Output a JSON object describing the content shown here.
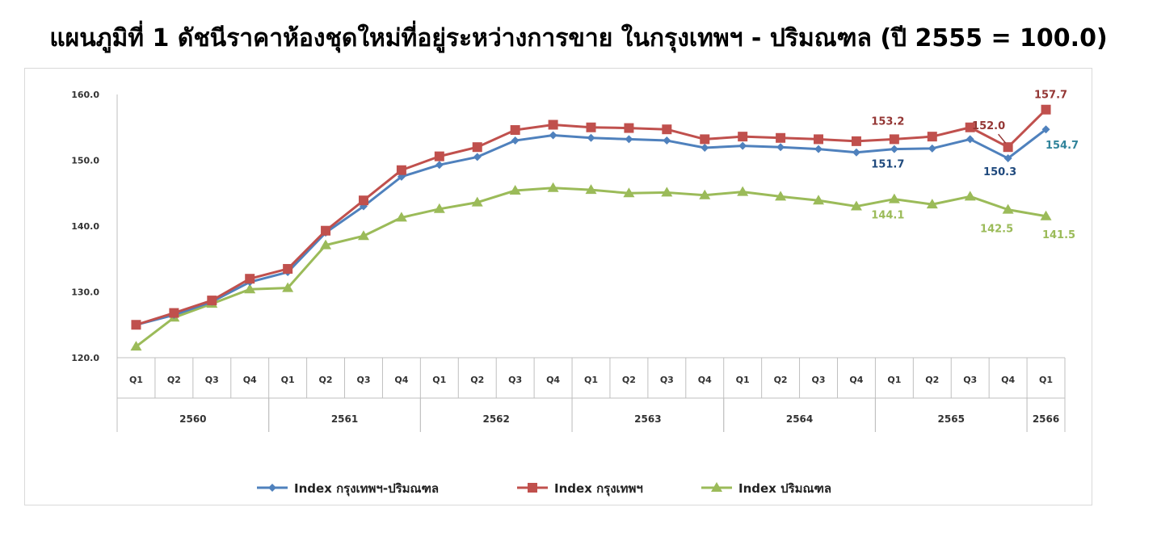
{
  "chart_data": {
    "type": "line",
    "title": "แผนภูมิที่ 1 ดัชนีราคาห้องชุดใหม่ที่อยู่ระหว่างการขาย ในกรุงเทพฯ - ปริมณฑล (ปี 2555 = 100.0)",
    "quarters": [
      "Q1",
      "Q2",
      "Q3",
      "Q4",
      "Q1",
      "Q2",
      "Q3",
      "Q4",
      "Q1",
      "Q2",
      "Q3",
      "Q4",
      "Q1",
      "Q2",
      "Q3",
      "Q4",
      "Q1",
      "Q2",
      "Q3",
      "Q4",
      "Q1",
      "Q2",
      "Q3",
      "Q4",
      "Q1"
    ],
    "years": [
      {
        "label": "2560",
        "start": 0,
        "count": 4
      },
      {
        "label": "2561",
        "start": 4,
        "count": 4
      },
      {
        "label": "2562",
        "start": 8,
        "count": 4
      },
      {
        "label": "2563",
        "start": 12,
        "count": 4
      },
      {
        "label": "2564",
        "start": 16,
        "count": 4
      },
      {
        "label": "2565",
        "start": 20,
        "count": 4
      },
      {
        "label": "2566",
        "start": 24,
        "count": 1
      }
    ],
    "ylim": [
      120,
      160
    ],
    "yticks": [
      "120.0",
      "130.0",
      "140.0",
      "150.0",
      "160.0"
    ],
    "series": [
      {
        "name": "Index กรุงเทพฯ-ปริมณฑล",
        "color": "#4f81bd",
        "marker": "diamond",
        "values": [
          125.0,
          126.5,
          128.5,
          131.5,
          133.0,
          139.0,
          143.0,
          147.5,
          149.3,
          150.5,
          153.0,
          153.8,
          153.4,
          153.2,
          153.0,
          151.9,
          152.2,
          152.0,
          151.7,
          151.2,
          151.7,
          151.8,
          153.2,
          150.3,
          154.7
        ]
      },
      {
        "name": "Index กรุงเทพฯ",
        "color": "#c0504d",
        "marker": "square",
        "values": [
          125.0,
          126.8,
          128.7,
          132.0,
          133.5,
          139.3,
          143.9,
          148.5,
          150.6,
          152.0,
          154.6,
          155.4,
          155.0,
          154.9,
          154.7,
          153.2,
          153.6,
          153.4,
          153.2,
          152.9,
          153.2,
          153.6,
          155.0,
          152.0,
          157.7
        ]
      },
      {
        "name": "Index ปริมณฑล",
        "color": "#9bbb59",
        "marker": "triangle",
        "values": [
          121.7,
          126.1,
          128.2,
          130.4,
          130.6,
          137.1,
          138.5,
          141.3,
          142.6,
          143.6,
          145.4,
          145.8,
          145.5,
          145.0,
          145.1,
          144.7,
          145.2,
          144.5,
          143.9,
          143.0,
          144.1,
          143.3,
          144.5,
          142.5,
          141.5
        ]
      }
    ],
    "annotations": [
      {
        "text": "153.2",
        "series": 1,
        "index": 20,
        "color": "#943634"
      },
      {
        "text": "152.0",
        "series": 1,
        "index": 23,
        "color": "#943634"
      },
      {
        "text": "157.7",
        "series": 1,
        "index": 24,
        "color": "#943634"
      },
      {
        "text": "151.7",
        "series": 0,
        "index": 20,
        "color": "#1f497d"
      },
      {
        "text": "150.3",
        "series": 0,
        "index": 23,
        "color": "#1f497d"
      },
      {
        "text": "154.7",
        "series": 0,
        "index": 24,
        "color": "#31849b"
      },
      {
        "text": "144.1",
        "series": 2,
        "index": 20,
        "color": "#9bbb59"
      },
      {
        "text": "142.5",
        "series": 2,
        "index": 23,
        "color": "#9bbb59"
      },
      {
        "text": "141.5",
        "series": 2,
        "index": 24,
        "color": "#9bbb59"
      }
    ],
    "legend_position": "bottom",
    "grid": false
  }
}
